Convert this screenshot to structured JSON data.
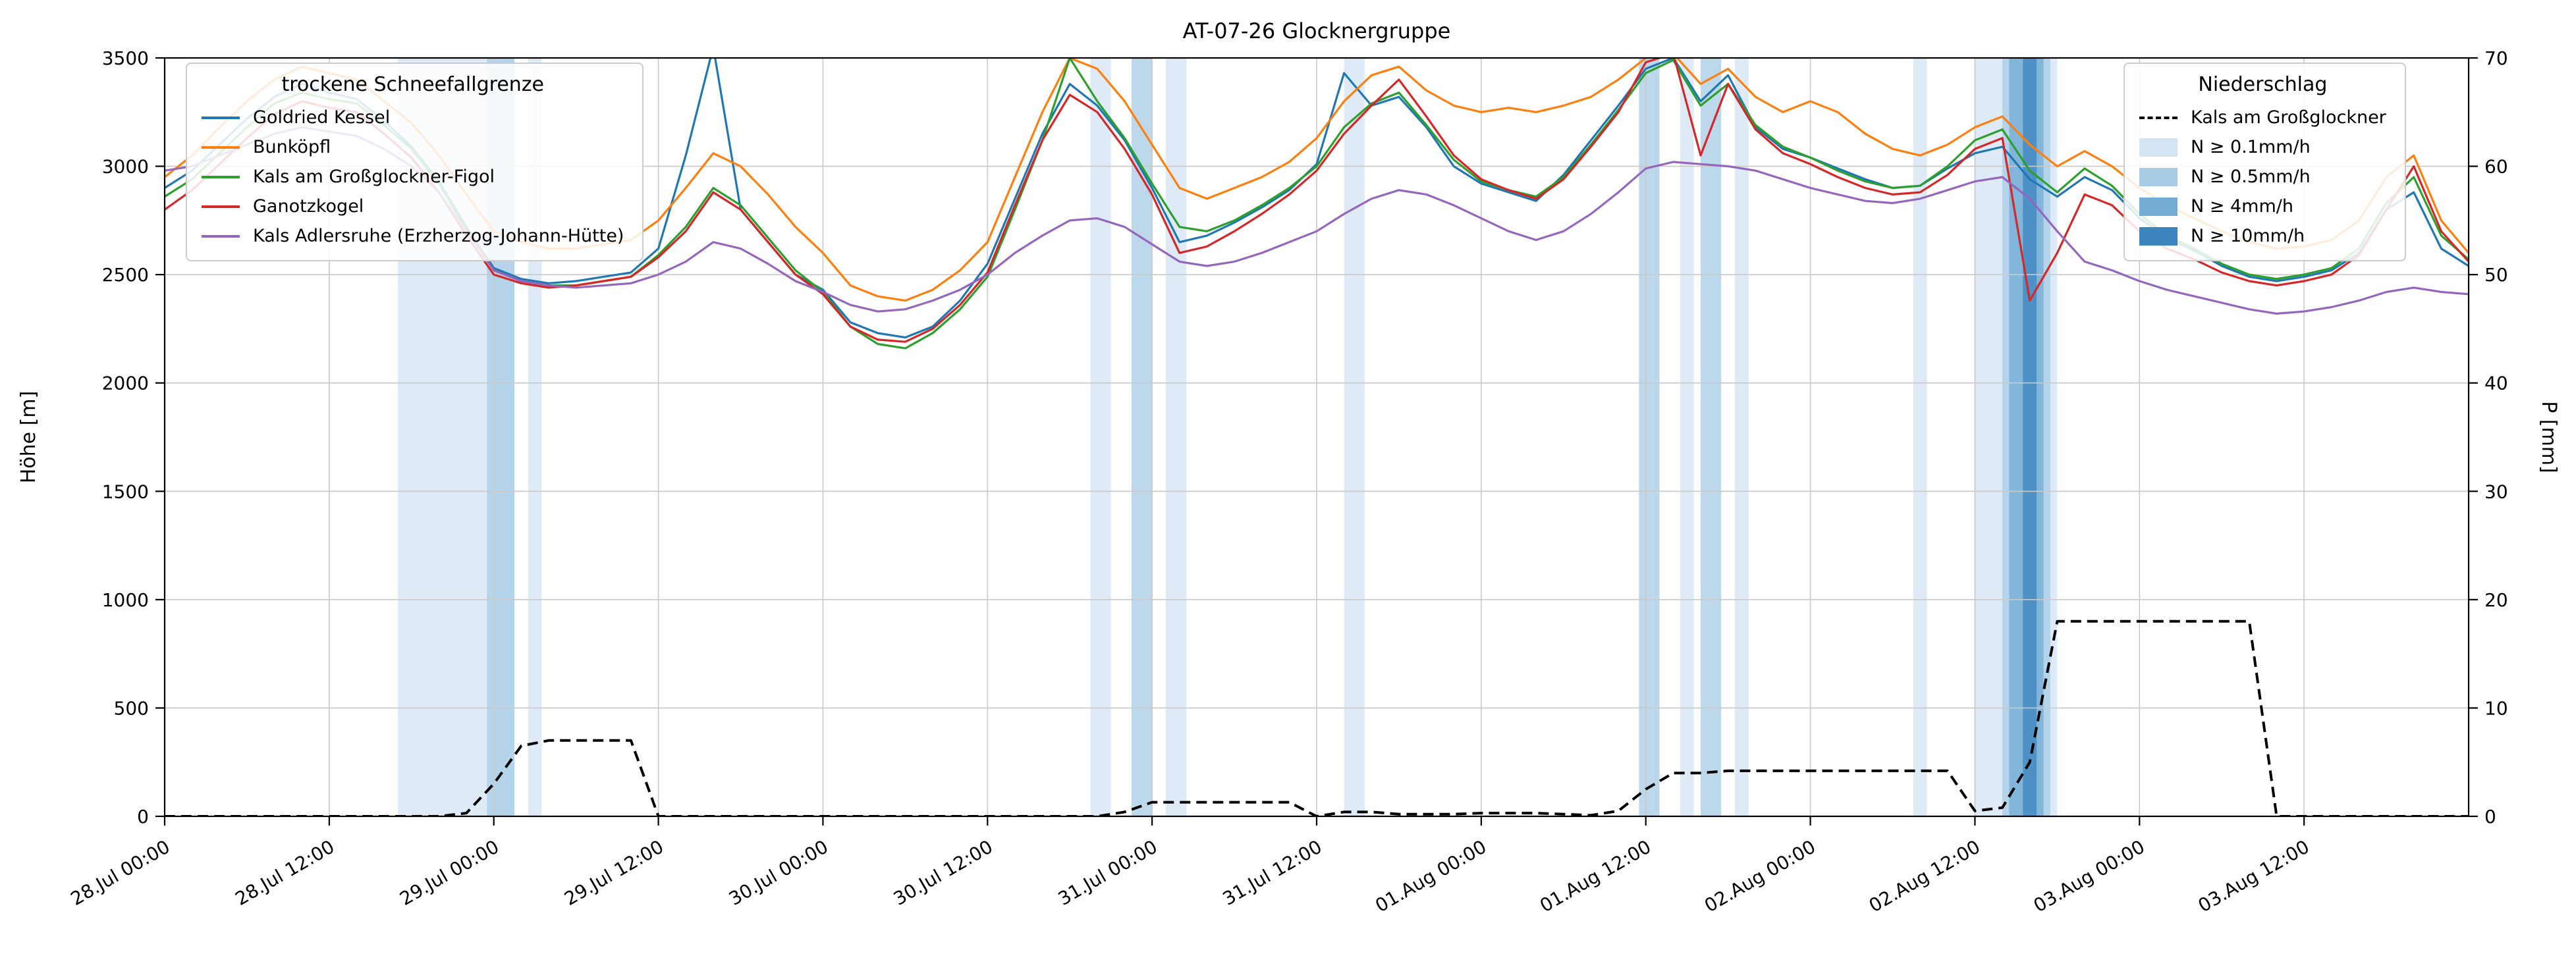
{
  "title": "AT-07-26 Glocknergruppe",
  "axes": {
    "ylabel_left": "Höhe [m]",
    "ylabel_right": "P [mm]",
    "ylim_left": [
      0,
      3500
    ],
    "ylim_right": [
      0,
      70
    ],
    "yticks_left": [
      0,
      500,
      1000,
      1500,
      2000,
      2500,
      3000,
      3500
    ],
    "yticks_right": [
      0,
      10,
      20,
      30,
      40,
      50,
      60,
      70
    ],
    "xlim_hours": [
      0,
      168
    ],
    "xticks": [
      {
        "hour": 0,
        "label": "28.Jul 00:00"
      },
      {
        "hour": 12,
        "label": "28.Jul 12:00"
      },
      {
        "hour": 24,
        "label": "29.Jul 00:00"
      },
      {
        "hour": 36,
        "label": "29.Jul 12:00"
      },
      {
        "hour": 48,
        "label": "30.Jul 00:00"
      },
      {
        "hour": 60,
        "label": "30.Jul 12:00"
      },
      {
        "hour": 72,
        "label": "31.Jul 00:00"
      },
      {
        "hour": 84,
        "label": "31.Jul 12:00"
      },
      {
        "hour": 96,
        "label": "01.Aug 00:00"
      },
      {
        "hour": 108,
        "label": "01.Aug 12:00"
      },
      {
        "hour": 120,
        "label": "02.Aug 00:00"
      },
      {
        "hour": 132,
        "label": "02.Aug 12:00"
      },
      {
        "hour": 144,
        "label": "03.Aug 00:00"
      },
      {
        "hour": 156,
        "label": "03.Aug 12:00"
      }
    ],
    "grid_color": "#c9c9c9"
  },
  "band_colors": {
    "0.1": "#d3e4f3",
    "0.5": "#a7cbe4",
    "4": "#72abd4",
    "10": "#3c85bf"
  },
  "legend_snowline": {
    "title": "trockene Schneefallgrenze",
    "entries": [
      {
        "label": "Goldried Kessel",
        "color": "#1f77b4"
      },
      {
        "label": "Bunköpfl",
        "color": "#ff7f0e"
      },
      {
        "label": "Kals am Großglockner-Figol",
        "color": "#2ca02c"
      },
      {
        "label": "Ganotzkogel",
        "color": "#d62728"
      },
      {
        "label": "Kals Adlersruhe (Erzherzog-Johann-Hütte)",
        "color": "#9467bd"
      }
    ]
  },
  "legend_precip": {
    "title": "Niederschlag",
    "line_entry": {
      "label": "Kals am Großglockner",
      "color": "#000000",
      "dashed": true
    },
    "band_entries": [
      {
        "label": "N ≥ 0.1mm/h",
        "level": "0.1"
      },
      {
        "label": "N ≥ 0.5mm/h",
        "level": "0.5"
      },
      {
        "label": "N ≥ 4mm/h",
        "level": "4"
      },
      {
        "label": "N ≥ 10mm/h",
        "level": "10"
      }
    ]
  },
  "chart_data": {
    "type": "line",
    "title": "AT-07-26 Glocknergruppe",
    "xlabel": "",
    "ylabel_left": "Höhe [m]",
    "ylabel_right": "P [mm]",
    "x_start_hour": 0,
    "x_step_hours": 2,
    "x_axis_note": "hours after 28 Jul 00:00, axis spans 28 Jul 00:00 to 04 Aug 00:00",
    "grid": true,
    "legend_positions": [
      "upper left",
      "upper right"
    ],
    "series": [
      {
        "name": "Goldried Kessel",
        "color": "#1f77b4",
        "axis": "left",
        "values": [
          2900,
          2980,
          3100,
          3220,
          3320,
          3380,
          3340,
          3310,
          3210,
          3090,
          2930,
          2720,
          2530,
          2480,
          2460,
          2470,
          2490,
          2510,
          2620,
          3050,
          3550,
          2800,
          2650,
          2500,
          2430,
          2280,
          2230,
          2210,
          2260,
          2380,
          2550,
          2850,
          3150,
          3380,
          3280,
          3120,
          2900,
          2650,
          2680,
          2740,
          2810,
          2890,
          3010,
          3430,
          3280,
          3320,
          3180,
          3000,
          2920,
          2880,
          2840,
          2960,
          3120,
          3280,
          3450,
          3500,
          3300,
          3420,
          3180,
          3080,
          3040,
          2990,
          2940,
          2900,
          2910,
          2990,
          3060,
          3090,
          2940,
          2860,
          2950,
          2890,
          2760,
          2670,
          2610,
          2540,
          2490,
          2470,
          2490,
          2520,
          2600,
          2800,
          2880,
          2620,
          2540
        ]
      },
      {
        "name": "Bunköpfl",
        "color": "#ff7f0e",
        "axis": "left",
        "values": [
          2950,
          3050,
          3180,
          3300,
          3400,
          3460,
          3430,
          3400,
          3300,
          3200,
          3050,
          2870,
          2700,
          2650,
          2620,
          2620,
          2640,
          2660,
          2750,
          2900,
          3060,
          3000,
          2870,
          2720,
          2600,
          2450,
          2400,
          2380,
          2430,
          2520,
          2650,
          2950,
          3250,
          3500,
          3450,
          3300,
          3100,
          2900,
          2850,
          2900,
          2950,
          3020,
          3130,
          3300,
          3420,
          3460,
          3350,
          3280,
          3250,
          3270,
          3250,
          3280,
          3320,
          3400,
          3500,
          3520,
          3380,
          3450,
          3320,
          3250,
          3300,
          3250,
          3150,
          3080,
          3050,
          3100,
          3180,
          3230,
          3100,
          3000,
          3070,
          3000,
          2900,
          2820,
          2760,
          2700,
          2650,
          2620,
          2630,
          2660,
          2750,
          2950,
          3050,
          2750,
          2600
        ]
      },
      {
        "name": "Kals am Großglockner-Figol",
        "color": "#2ca02c",
        "axis": "left",
        "values": [
          2860,
          2940,
          3060,
          3180,
          3290,
          3340,
          3310,
          3290,
          3190,
          3080,
          2920,
          2710,
          2520,
          2470,
          2450,
          2450,
          2470,
          2490,
          2590,
          2720,
          2900,
          2820,
          2670,
          2520,
          2420,
          2260,
          2180,
          2160,
          2230,
          2340,
          2490,
          2800,
          3120,
          3500,
          3300,
          3130,
          2920,
          2720,
          2700,
          2750,
          2820,
          2900,
          3000,
          3180,
          3290,
          3340,
          3190,
          3030,
          2930,
          2890,
          2860,
          2950,
          3100,
          3260,
          3430,
          3490,
          3280,
          3380,
          3190,
          3090,
          3040,
          2980,
          2930,
          2900,
          2910,
          3000,
          3120,
          3170,
          2980,
          2880,
          2990,
          2910,
          2780,
          2680,
          2620,
          2550,
          2500,
          2480,
          2500,
          2530,
          2620,
          2830,
          2950,
          2680,
          2570
        ]
      },
      {
        "name": "Ganotzkogel",
        "color": "#d62728",
        "axis": "left",
        "values": [
          2800,
          2890,
          3010,
          3130,
          3240,
          3300,
          3270,
          3250,
          3150,
          3040,
          2880,
          2680,
          2500,
          2460,
          2440,
          2450,
          2470,
          2490,
          2580,
          2700,
          2880,
          2800,
          2650,
          2500,
          2410,
          2260,
          2200,
          2190,
          2250,
          2360,
          2510,
          2820,
          3120,
          3330,
          3250,
          3080,
          2870,
          2600,
          2630,
          2700,
          2780,
          2870,
          2980,
          3150,
          3280,
          3400,
          3230,
          3050,
          2940,
          2890,
          2850,
          2940,
          3090,
          3250,
          3480,
          3520,
          3050,
          3380,
          3170,
          3060,
          3010,
          2950,
          2900,
          2870,
          2880,
          2960,
          3080,
          3130,
          2380,
          2600,
          2870,
          2820,
          2700,
          2620,
          2570,
          2510,
          2470,
          2450,
          2470,
          2500,
          2590,
          2800,
          3000,
          2700,
          2560
        ]
      },
      {
        "name": "Kals Adlersruhe (Erzherzog-Johann-Hütte)",
        "color": "#9467bd",
        "axis": "left",
        "values": [
          2980,
          3000,
          3050,
          3100,
          3150,
          3180,
          3160,
          3140,
          3080,
          3000,
          2880,
          2700,
          2520,
          2470,
          2450,
          2440,
          2450,
          2460,
          2500,
          2560,
          2650,
          2620,
          2550,
          2470,
          2420,
          2360,
          2330,
          2340,
          2380,
          2430,
          2500,
          2600,
          2680,
          2750,
          2760,
          2720,
          2640,
          2560,
          2540,
          2560,
          2600,
          2650,
          2700,
          2780,
          2850,
          2890,
          2870,
          2820,
          2760,
          2700,
          2660,
          2700,
          2780,
          2880,
          2990,
          3020,
          3010,
          3000,
          2980,
          2940,
          2900,
          2870,
          2840,
          2830,
          2850,
          2890,
          2930,
          2950,
          2850,
          2700,
          2560,
          2520,
          2470,
          2430,
          2400,
          2370,
          2340,
          2320,
          2330,
          2350,
          2380,
          2420,
          2440,
          2420,
          2410
        ]
      }
    ],
    "precip_line": {
      "name": "Kals am Großglockner",
      "color": "#000000",
      "style": "dashed",
      "axis": "right",
      "values": [
        0,
        0,
        0,
        0,
        0,
        0,
        0,
        0,
        0,
        0,
        0,
        0.3,
        3,
        6.5,
        7,
        7,
        7,
        7,
        0,
        0,
        0,
        0,
        0,
        0,
        0,
        0,
        0,
        0,
        0,
        0,
        0,
        0,
        0,
        0,
        0,
        0.4,
        1.3,
        1.3,
        1.3,
        1.3,
        1.3,
        1.3,
        0,
        0.4,
        0.4,
        0.2,
        0.2,
        0.2,
        0.3,
        0.3,
        0.3,
        0.2,
        0.1,
        0.5,
        2.5,
        4,
        4,
        4.2,
        4.2,
        4.2,
        4.2,
        4.2,
        4.2,
        4.2,
        4.2,
        4.2,
        0.5,
        0.8,
        5,
        18,
        18,
        18,
        18,
        18,
        18,
        18,
        18,
        0,
        0,
        0,
        0,
        0,
        0,
        0,
        0
      ]
    },
    "precip_bands": [
      {
        "start_hour": 17,
        "end_hour": 25.5,
        "level": "0.1"
      },
      {
        "start_hour": 23.5,
        "end_hour": 25.5,
        "level": "0.5"
      },
      {
        "start_hour": 26.5,
        "end_hour": 27.5,
        "level": "0.1"
      },
      {
        "start_hour": 67.5,
        "end_hour": 69,
        "level": "0.1"
      },
      {
        "start_hour": 70.5,
        "end_hour": 72,
        "level": "0.5"
      },
      {
        "start_hour": 73,
        "end_hour": 74.5,
        "level": "0.1"
      },
      {
        "start_hour": 86,
        "end_hour": 87.5,
        "level": "0.1"
      },
      {
        "start_hour": 107.5,
        "end_hour": 109,
        "level": "0.5"
      },
      {
        "start_hour": 110.5,
        "end_hour": 111.5,
        "level": "0.1"
      },
      {
        "start_hour": 112,
        "end_hour": 113.5,
        "level": "0.5"
      },
      {
        "start_hour": 114.5,
        "end_hour": 115.5,
        "level": "0.1"
      },
      {
        "start_hour": 127.5,
        "end_hour": 128.5,
        "level": "0.1"
      },
      {
        "start_hour": 132,
        "end_hour": 138,
        "level": "0.1"
      },
      {
        "start_hour": 134,
        "end_hour": 137.5,
        "level": "0.5"
      },
      {
        "start_hour": 134.5,
        "end_hour": 137,
        "level": "4"
      },
      {
        "start_hour": 135.5,
        "end_hour": 136.5,
        "level": "10"
      }
    ]
  }
}
